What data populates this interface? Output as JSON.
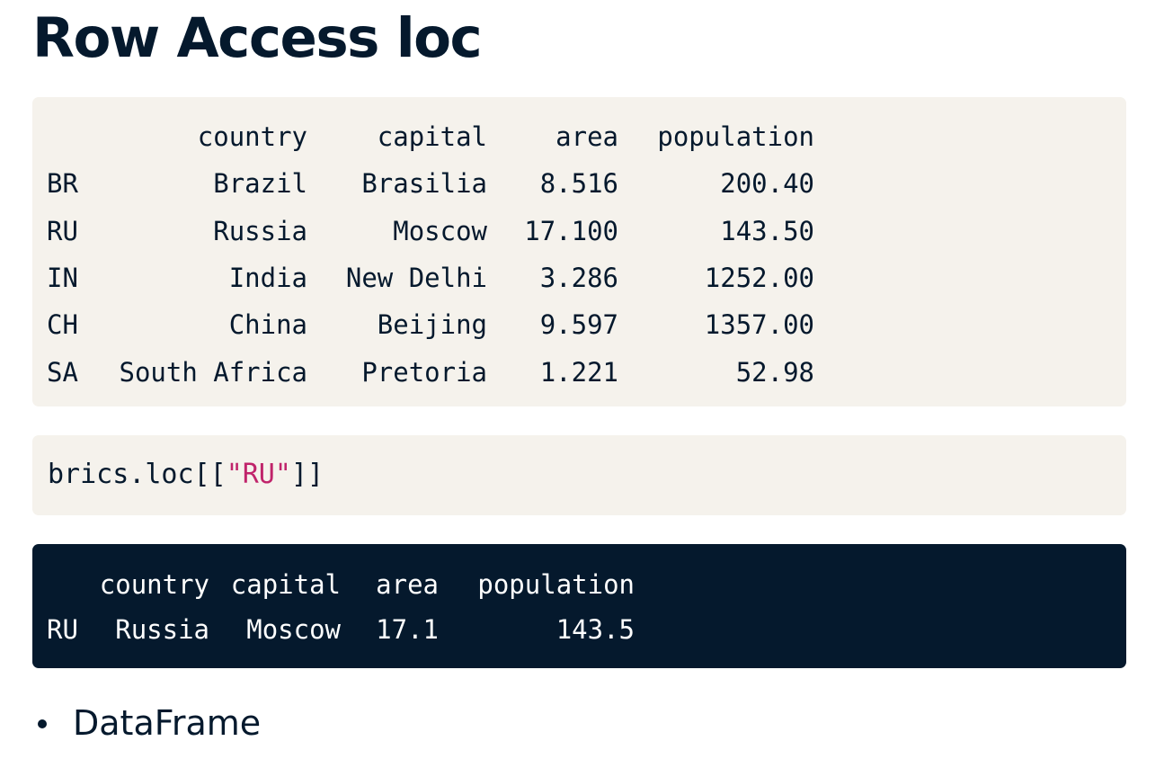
{
  "title": "Row Access loc",
  "dataframe": {
    "columns": [
      "country",
      "capital",
      "area",
      "population"
    ],
    "rows": [
      {
        "index": "BR",
        "country": "Brazil",
        "capital": "Brasilia",
        "area": "8.516",
        "population": "200.40"
      },
      {
        "index": "RU",
        "country": "Russia",
        "capital": "Moscow",
        "area": "17.100",
        "population": "143.50"
      },
      {
        "index": "IN",
        "country": "India",
        "capital": "New Delhi",
        "area": "3.286",
        "population": "1252.00"
      },
      {
        "index": "CH",
        "country": "China",
        "capital": "Beijing",
        "area": "9.597",
        "population": "1357.00"
      },
      {
        "index": "SA",
        "country": "South Africa",
        "capital": "Pretoria",
        "area": "1.221",
        "population": "52.98"
      }
    ]
  },
  "code": {
    "prefix": "brics.loc[[",
    "string": "\"RU\"",
    "suffix": "]]"
  },
  "output": {
    "columns": [
      "country",
      "capital",
      "area",
      "population"
    ],
    "rows": [
      {
        "index": "RU",
        "country": "Russia",
        "capital": "Moscow",
        "area": "17.1",
        "population": "143.5"
      }
    ]
  },
  "bullets": [
    "DataFrame"
  ],
  "colors": {
    "text": "#05192d",
    "code_block_bg": "#f5f2ec",
    "output_block_bg": "#05192d",
    "string_literal": "#c0246b"
  }
}
